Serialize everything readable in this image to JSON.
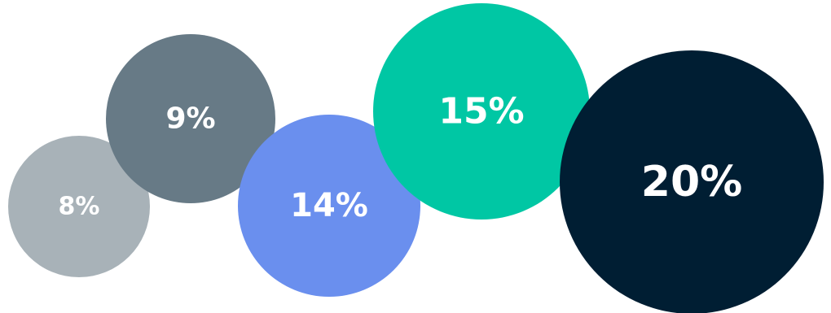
{
  "chart_data": {
    "type": "bubble",
    "title": "",
    "bubbles": [
      {
        "label": "8%",
        "value": 8,
        "color": "#a8b2b8"
      },
      {
        "label": "9%",
        "value": 9,
        "color": "#677a86"
      },
      {
        "label": "14%",
        "value": 14,
        "color": "#6a8fee"
      },
      {
        "label": "15%",
        "value": 15,
        "color": "#00c7a4"
      },
      {
        "label": "20%",
        "value": 20,
        "color": "#001e33"
      }
    ]
  }
}
